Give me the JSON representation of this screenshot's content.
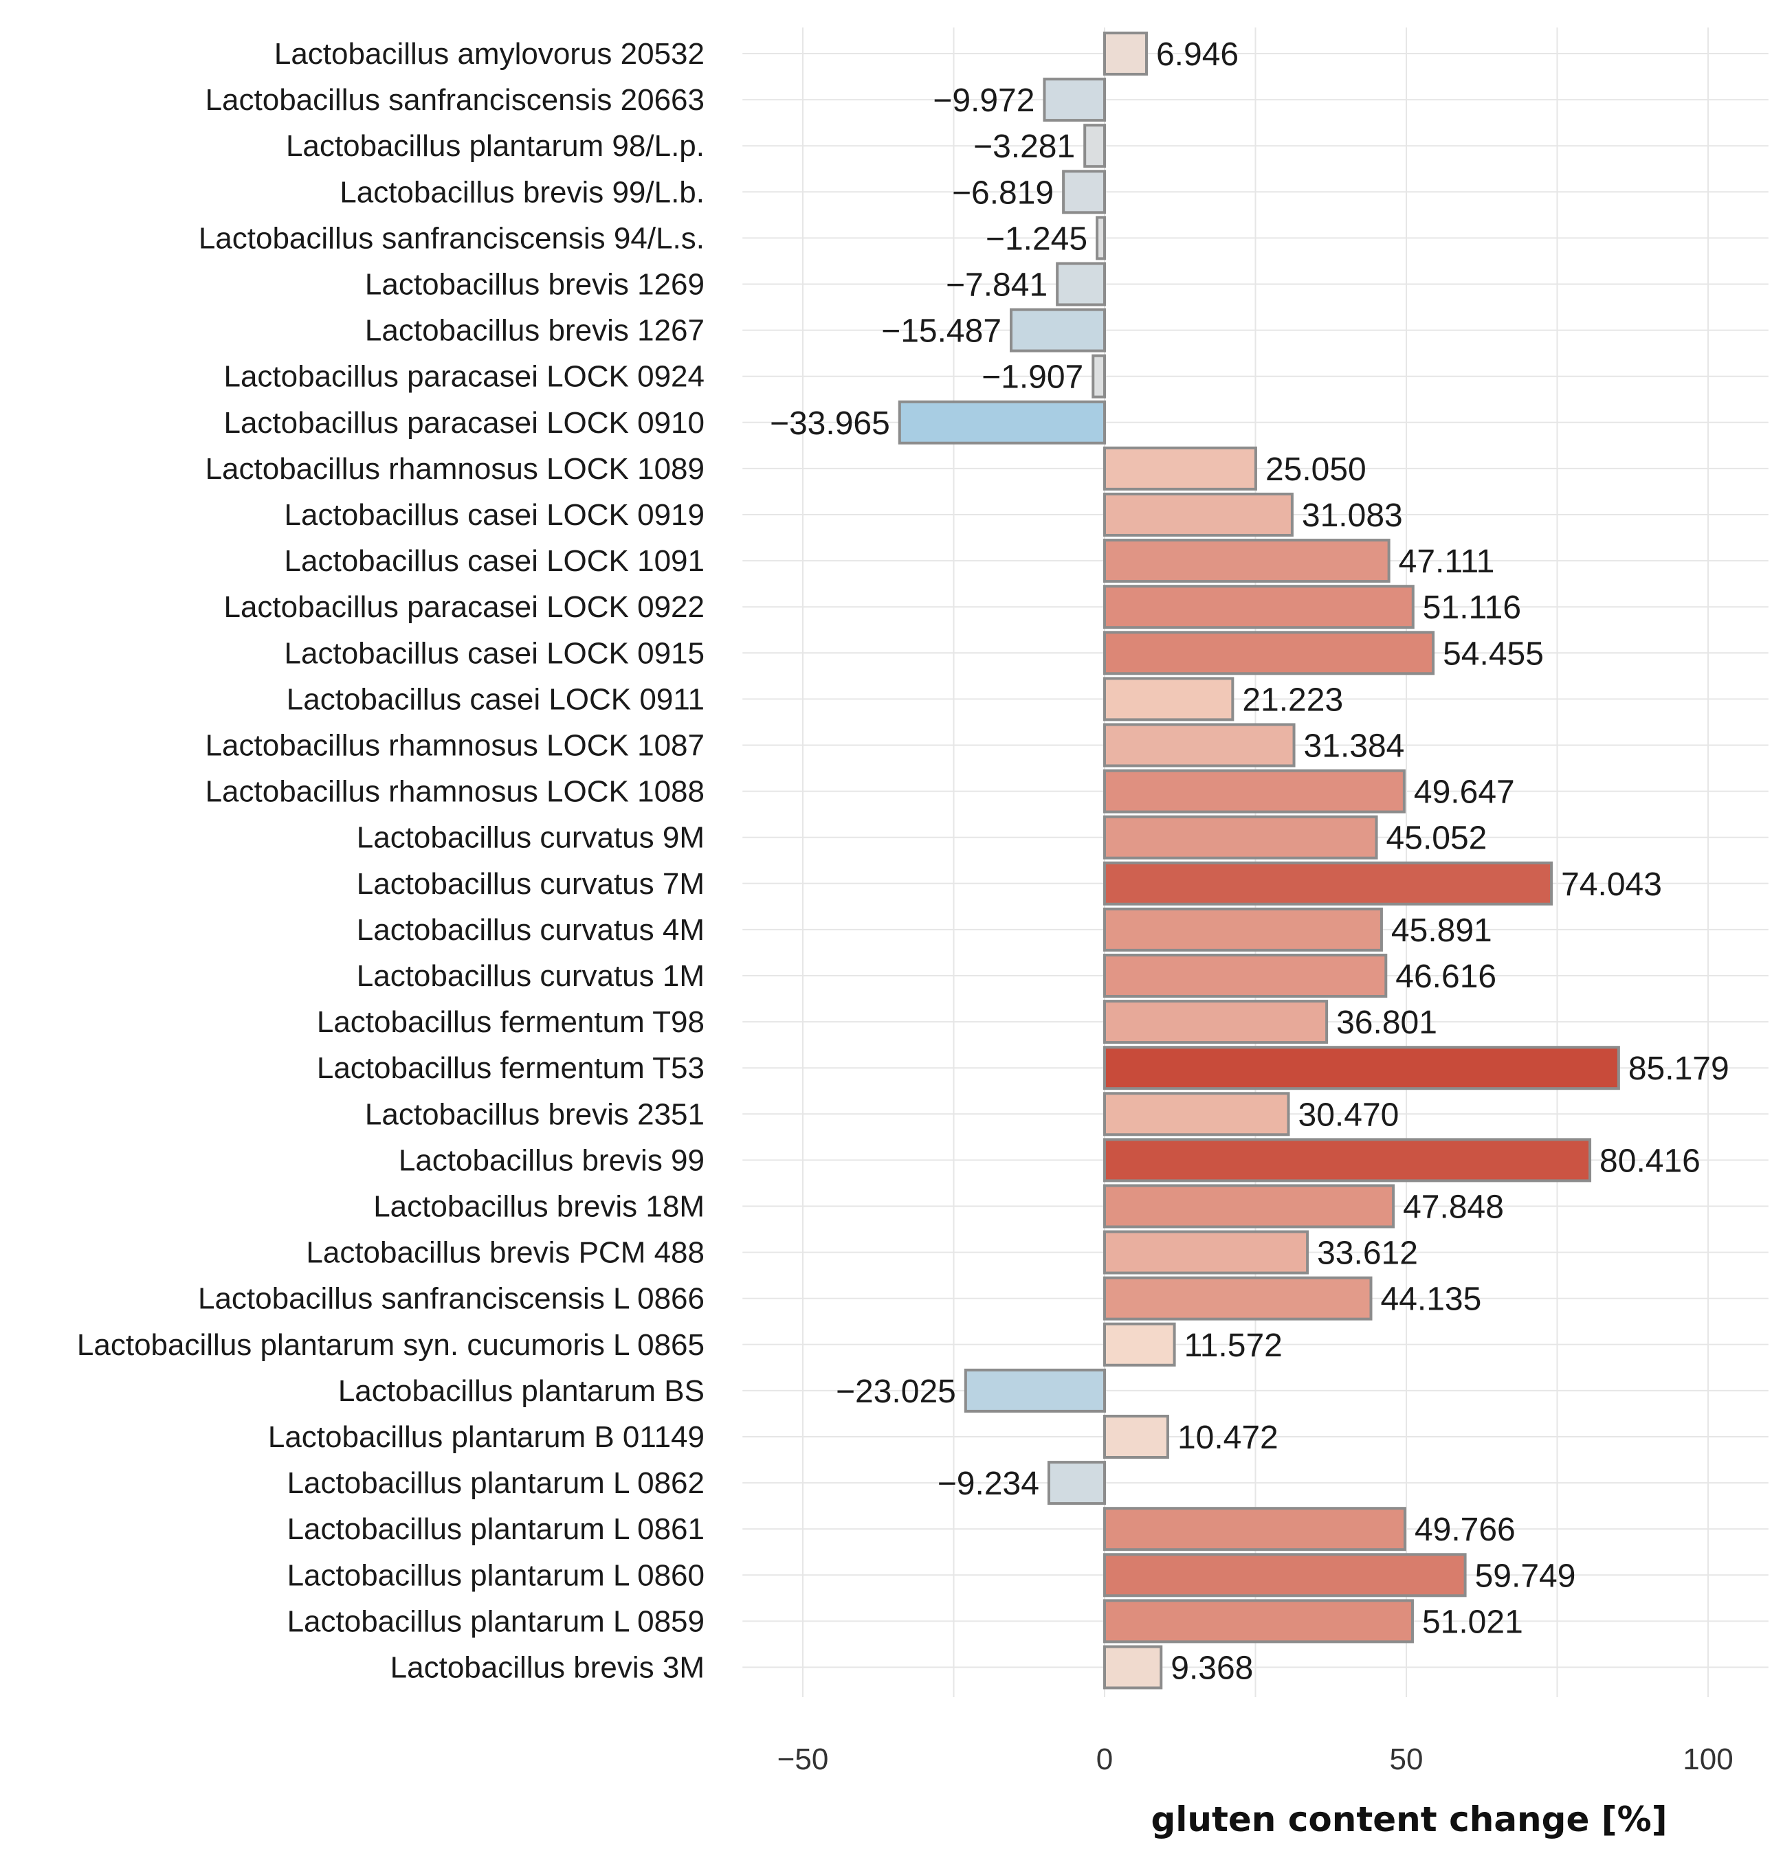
{
  "chart_data": {
    "type": "bar",
    "orientation": "horizontal",
    "title": "",
    "xlabel": "gluten content change [%]",
    "ylabel": "",
    "xlim": [
      -50,
      100
    ],
    "xticks": [
      -50,
      0,
      50,
      100
    ],
    "xtick_labels": [
      "−50",
      "0",
      "50",
      "100"
    ],
    "grid": true,
    "color_scale": {
      "negative_max": "#a8cde3",
      "zero": "#e0e0e0",
      "positive_low": "#f6d8c8",
      "positive_max": "#c84b3a"
    },
    "categories": [
      "Lactobacillus amylovorus 20532",
      "Lactobacillus sanfranciscensis 20663",
      "Lactobacillus plantarum 98/L.p.",
      "Lactobacillus brevis 99/L.b.",
      "Lactobacillus sanfranciscensis 94/L.s.",
      "Lactobacillus brevis 1269",
      "Lactobacillus brevis 1267",
      "Lactobacillus paracasei LOCK 0924",
      "Lactobacillus paracasei LOCK 0910",
      "Lactobacillus rhamnosus LOCK 1089",
      "Lactobacillus casei LOCK 0919",
      "Lactobacillus casei LOCK 1091",
      "Lactobacillus paracasei LOCK 0922",
      "Lactobacillus casei LOCK 0915",
      "Lactobacillus casei LOCK 0911",
      "Lactobacillus rhamnosus LOCK 1087",
      "Lactobacillus rhamnosus LOCK 1088",
      "Lactobacillus curvatus 9M",
      "Lactobacillus curvatus 7M",
      "Lactobacillus curvatus 4M",
      "Lactobacillus curvatus 1M",
      "Lactobacillus fermentum T98",
      "Lactobacillus fermentum T53",
      "Lactobacillus brevis 2351",
      "Lactobacillus brevis 99",
      "Lactobacillus brevis 18M",
      "Lactobacillus brevis PCM 488",
      "Lactobacillus sanfranciscensis L 0866",
      "Lactobacillus plantarum syn. cucumoris L 0865",
      "Lactobacillus plantarum BS",
      "Lactobacillus plantarum B 01149",
      "Lactobacillus plantarum L 0862",
      "Lactobacillus plantarum L 0861",
      "Lactobacillus plantarum L 0860",
      "Lactobacillus plantarum L 0859",
      "Lactobacillus brevis 3M"
    ],
    "values": [
      6.946,
      -9.972,
      -3.281,
      -6.819,
      -1.245,
      -7.841,
      -15.487,
      -1.907,
      -33.965,
      25.05,
      31.083,
      47.111,
      51.116,
      54.455,
      21.223,
      31.384,
      49.647,
      45.052,
      74.043,
      45.891,
      46.616,
      36.801,
      85.179,
      30.47,
      80.416,
      47.848,
      33.612,
      44.135,
      11.572,
      -23.025,
      10.472,
      -9.234,
      49.766,
      59.749,
      51.021,
      9.368
    ],
    "value_labels": [
      "6.946",
      "−9.972",
      "−3.281",
      "−6.819",
      "−1.245",
      "−7.841",
      "−15.487",
      "−1.907",
      "−33.965",
      "25.050",
      "31.083",
      "47.111",
      "51.116",
      "54.455",
      "21.223",
      "31.384",
      "49.647",
      "45.052",
      "74.043",
      "45.891",
      "46.616",
      "36.801",
      "85.179",
      "30.470",
      "80.416",
      "47.848",
      "33.612",
      "44.135",
      "11.572",
      "−23.025",
      "10.472",
      "−9.234",
      "49.766",
      "59.749",
      "51.021",
      "9.368"
    ]
  }
}
